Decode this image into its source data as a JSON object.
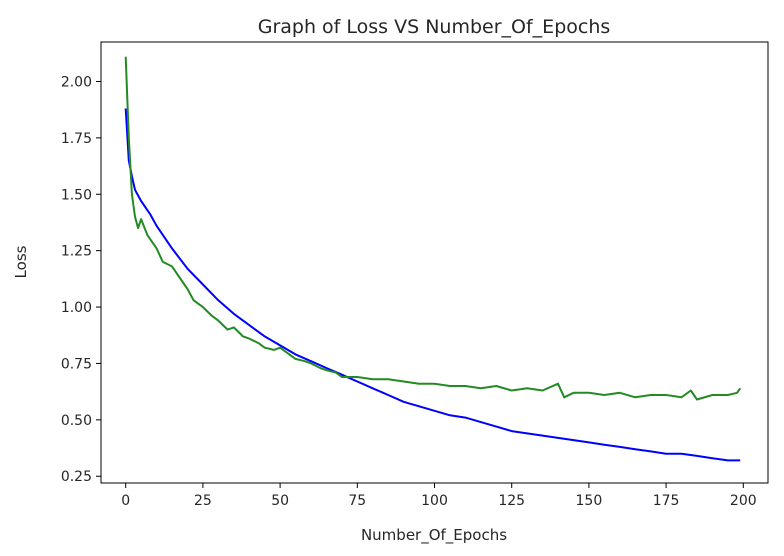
{
  "chart_data": {
    "type": "line",
    "title": "Graph of Loss VS Number_Of_Epochs",
    "xlabel": "Number_Of_Epochs",
    "ylabel": "Loss",
    "xlim": [
      -8,
      208
    ],
    "ylim": [
      0.22,
      2.175
    ],
    "xticks": [
      0,
      25,
      50,
      75,
      100,
      125,
      150,
      175,
      200
    ],
    "xtick_labels": [
      "0",
      "25",
      "50",
      "75",
      "100",
      "125",
      "150",
      "175",
      "200"
    ],
    "yticks": [
      0.25,
      0.5,
      0.75,
      1.0,
      1.25,
      1.5,
      1.75,
      2.0
    ],
    "ytick_labels": [
      "0.25",
      "0.50",
      "0.75",
      "1.00",
      "1.25",
      "1.50",
      "1.75",
      "2.00"
    ],
    "grid": false,
    "legend": "none",
    "series": [
      {
        "color": "#0000ff",
        "x": [
          0,
          1,
          2,
          3,
          5,
          8,
          10,
          15,
          20,
          25,
          30,
          35,
          40,
          45,
          50,
          55,
          60,
          65,
          70,
          75,
          80,
          85,
          90,
          95,
          100,
          105,
          110,
          115,
          120,
          125,
          130,
          135,
          140,
          145,
          150,
          155,
          160,
          165,
          170,
          175,
          180,
          185,
          190,
          195,
          199
        ],
        "y": [
          1.88,
          1.65,
          1.58,
          1.52,
          1.47,
          1.41,
          1.36,
          1.26,
          1.17,
          1.1,
          1.03,
          0.97,
          0.92,
          0.87,
          0.83,
          0.79,
          0.76,
          0.73,
          0.7,
          0.67,
          0.64,
          0.61,
          0.58,
          0.56,
          0.54,
          0.52,
          0.51,
          0.49,
          0.47,
          0.45,
          0.44,
          0.43,
          0.42,
          0.41,
          0.4,
          0.39,
          0.38,
          0.37,
          0.36,
          0.35,
          0.35,
          0.34,
          0.33,
          0.32,
          0.32
        ]
      },
      {
        "color": "#238b23",
        "x": [
          0,
          1,
          2,
          3,
          4,
          5,
          7,
          10,
          12,
          15,
          18,
          20,
          22,
          25,
          28,
          30,
          33,
          35,
          38,
          40,
          43,
          45,
          48,
          50,
          53,
          55,
          58,
          60,
          63,
          65,
          68,
          70,
          75,
          80,
          85,
          90,
          95,
          100,
          105,
          110,
          115,
          120,
          125,
          130,
          135,
          140,
          142,
          145,
          150,
          155,
          160,
          165,
          170,
          175,
          180,
          183,
          185,
          190,
          195,
          198,
          199
        ],
        "y": [
          2.11,
          1.75,
          1.5,
          1.4,
          1.35,
          1.39,
          1.32,
          1.26,
          1.2,
          1.18,
          1.12,
          1.08,
          1.03,
          1.0,
          0.96,
          0.94,
          0.9,
          0.91,
          0.87,
          0.86,
          0.84,
          0.82,
          0.81,
          0.82,
          0.79,
          0.77,
          0.76,
          0.75,
          0.73,
          0.72,
          0.71,
          0.69,
          0.69,
          0.68,
          0.68,
          0.67,
          0.66,
          0.66,
          0.65,
          0.65,
          0.64,
          0.65,
          0.63,
          0.64,
          0.63,
          0.66,
          0.6,
          0.62,
          0.62,
          0.61,
          0.62,
          0.6,
          0.61,
          0.61,
          0.6,
          0.63,
          0.59,
          0.61,
          0.61,
          0.62,
          0.64
        ]
      }
    ]
  }
}
